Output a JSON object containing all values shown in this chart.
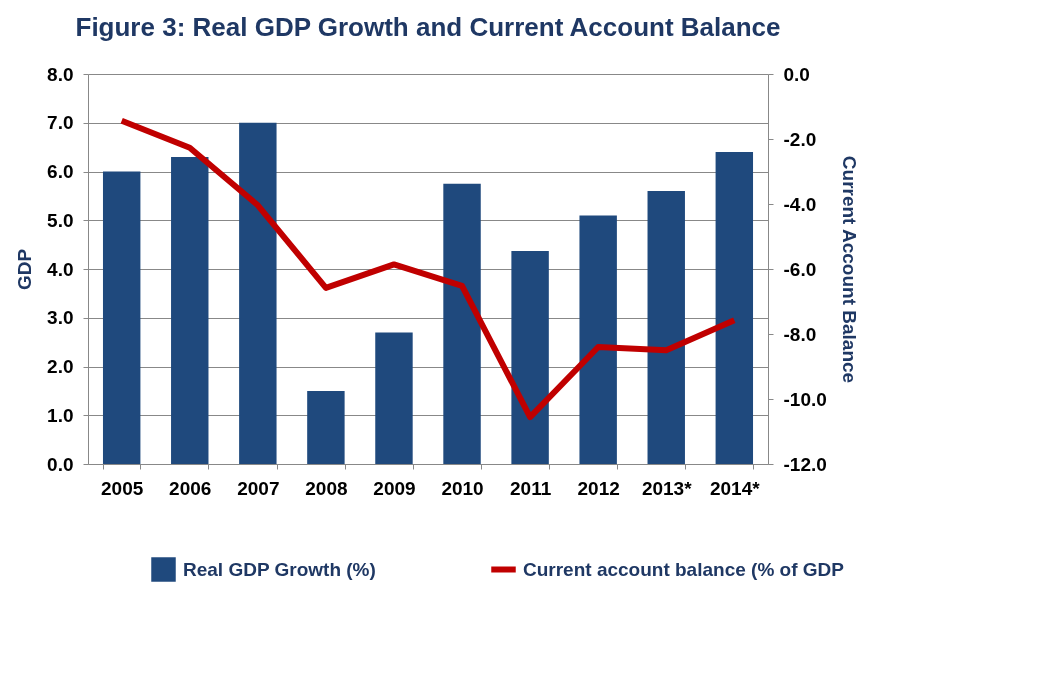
{
  "chart_data": {
    "type": "bar",
    "title": "Figure 3: Real GDP Growth and Current Account Balance",
    "categories": [
      "2005",
      "2006",
      "2007",
      "2008",
      "2009",
      "2010",
      "2011",
      "2012",
      "2013*",
      "2014*"
    ],
    "series": [
      {
        "name": "Real GDP Growth (%)",
        "color": "#1f497d",
        "values": [
          6.0,
          6.3,
          7.0,
          1.5,
          2.7,
          5.75,
          4.37,
          5.1,
          5.6,
          6.4
        ]
      },
      {
        "name": "Current account balance (% of GDP",
        "type": "line",
        "axis": "y2",
        "color": "#c00000",
        "values": [
          -1.44,
          -2.27,
          -4.04,
          -6.58,
          -5.86,
          -6.52,
          -10.56,
          -8.4,
          -8.5,
          -7.58
        ]
      }
    ],
    "ylabel": "GDP",
    "y2label": "Current Account Balance",
    "ylim": [
      0,
      8
    ],
    "yticks": [
      {
        "value": 0,
        "label": "0.0"
      },
      {
        "value": 1,
        "label": "1.0"
      },
      {
        "value": 2,
        "label": "2.0"
      },
      {
        "value": 3,
        "label": "3.0"
      },
      {
        "value": 4,
        "label": "4.0"
      },
      {
        "value": 5,
        "label": "5.0"
      },
      {
        "value": 6,
        "label": "6.0"
      },
      {
        "value": 7,
        "label": "7.0"
      },
      {
        "value": 8,
        "label": "8.0"
      }
    ],
    "y2lim": [
      -12,
      0
    ],
    "y2ticks": [
      {
        "value": -12,
        "label": "-12.0"
      },
      {
        "value": -10,
        "label": "-10.0"
      },
      {
        "value": -8,
        "label": "-8.0"
      },
      {
        "value": -6,
        "label": "-6.0"
      },
      {
        "value": -4,
        "label": "-4.0"
      },
      {
        "value": -2,
        "label": "-2.0"
      },
      {
        "value": 0,
        "label": "0.0"
      }
    ],
    "grid": "y",
    "legend": "bottom",
    "line_style": "solid",
    "marker": "none"
  }
}
